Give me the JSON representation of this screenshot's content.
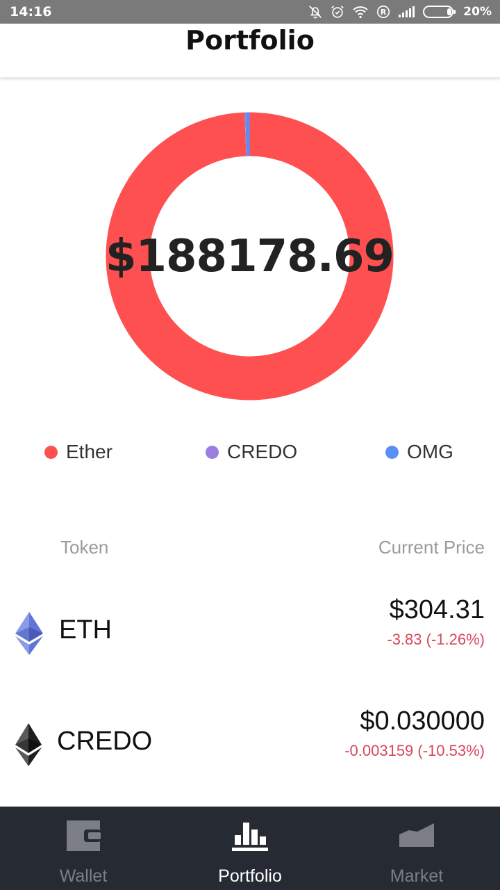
{
  "status_bar": {
    "time": "14:16",
    "battery": "20%"
  },
  "header": {
    "title": "Portfolio"
  },
  "portfolio": {
    "total_value": "$188178.69"
  },
  "chart_data": {
    "type": "pie",
    "style": "donut",
    "categories": [
      "Ether",
      "CREDO",
      "OMG"
    ],
    "values": [
      99.45,
      0.05,
      0.5
    ],
    "colors": [
      "#fe5050",
      "#9d7de0",
      "#5b8ef4"
    ],
    "center_label": "$188178.69"
  },
  "legend": [
    {
      "label": "Ether",
      "color": "#fe5050"
    },
    {
      "label": "CREDO",
      "color": "#9d7de0"
    },
    {
      "label": "OMG",
      "color": "#5b8ef4"
    }
  ],
  "table": {
    "col_token": "Token",
    "col_price": "Current Price",
    "rows": [
      {
        "symbol": "ETH",
        "price": "$304.31",
        "change": "-3.83 (-1.26%)",
        "icon": "ethereum-icon"
      },
      {
        "symbol": "CREDO",
        "price": "$0.030000",
        "change": "-0.003159 (-10.53%)",
        "icon": "ethereum-dark-icon"
      }
    ]
  },
  "nav": {
    "wallet": "Wallet",
    "portfolio": "Portfolio",
    "market": "Market",
    "active": "Portfolio"
  }
}
